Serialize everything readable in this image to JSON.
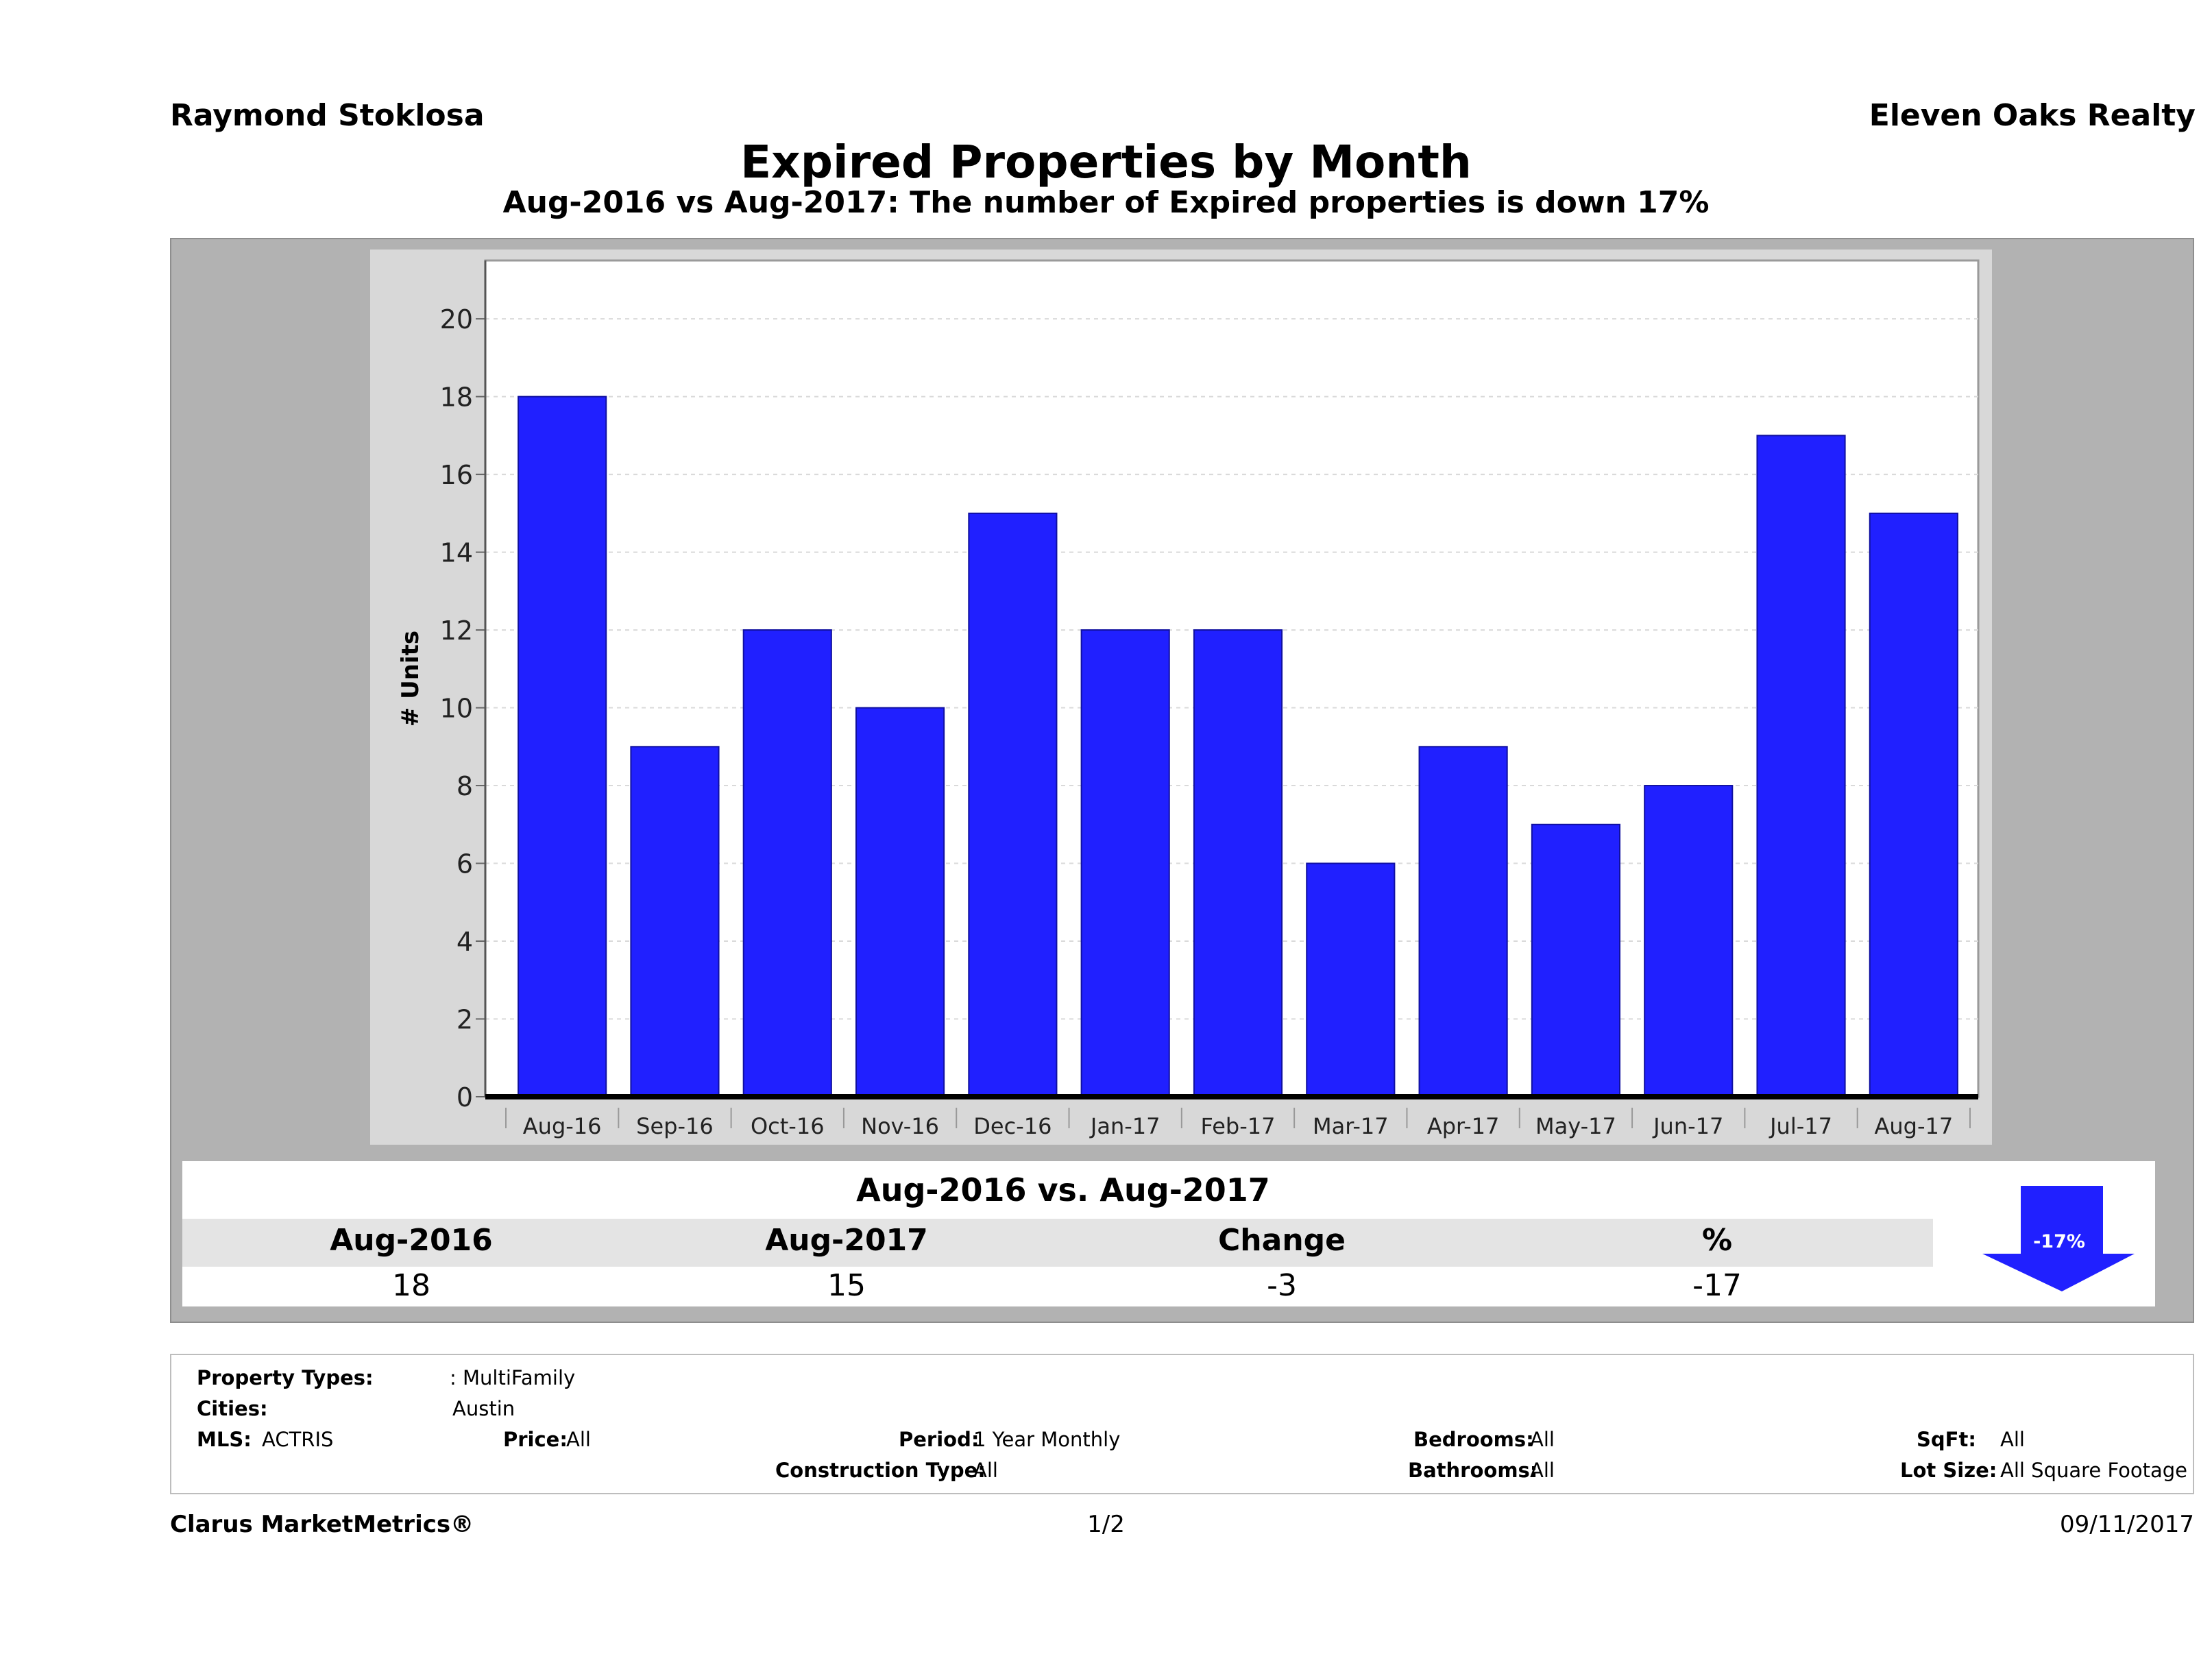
{
  "header": {
    "agent": "Raymond Stoklosa",
    "broker": "Eleven Oaks Realty",
    "title": "Expired Properties by Month",
    "subtitle": "Aug-2016 vs Aug-2017: The number of Expired  properties is down 17%"
  },
  "chart_data": {
    "type": "bar",
    "categories": [
      "Aug-16",
      "Sep-16",
      "Oct-16",
      "Nov-16",
      "Dec-16",
      "Jan-17",
      "Feb-17",
      "Mar-17",
      "Apr-17",
      "May-17",
      "Jun-17",
      "Jul-17",
      "Aug-17"
    ],
    "values": [
      18,
      9,
      12,
      10,
      15,
      12,
      12,
      6,
      9,
      7,
      8,
      17,
      15
    ],
    "ylabel": "# Units",
    "ylim": [
      0,
      21.5
    ],
    "yticks": [
      0,
      2,
      4,
      6,
      8,
      10,
      12,
      14,
      16,
      18,
      20
    ],
    "bar_color": "#2020ff",
    "grid": true
  },
  "summary": {
    "title": "Aug-2016 vs. Aug-2017",
    "headers": [
      "Aug-2016",
      "Aug-2017",
      "Change",
      "%"
    ],
    "values": [
      "18",
      "15",
      "-3",
      "-17"
    ],
    "arrow_label": "-17%",
    "arrow_direction": "down",
    "arrow_color": "#2020ff"
  },
  "filters": {
    "property_types_label": "Property Types:",
    "property_types_value": ": MultiFamily",
    "cities_label": "Cities:",
    "cities_value": "Austin",
    "mls_label": "MLS:",
    "mls_value": "ACTRIS",
    "price_label": "Price:",
    "price_value": "All",
    "period_label": "Period:",
    "period_value": "1 Year Monthly",
    "construction_label": "Construction Type:",
    "construction_value": "All",
    "bedrooms_label": "Bedrooms:",
    "bedrooms_value": "All",
    "bathrooms_label": "Bathrooms:",
    "bathrooms_value": "All",
    "sqft_label": "SqFt:",
    "sqft_value": "All",
    "lotsize_label": "Lot Size:",
    "lotsize_value": "All Square Footage"
  },
  "footer": {
    "brand": "Clarus MarketMetrics®",
    "page": "1/2",
    "date": "09/11/2017"
  }
}
